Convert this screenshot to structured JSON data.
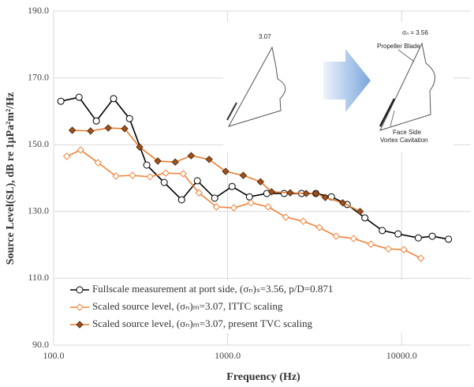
{
  "chart_data": {
    "type": "line",
    "xlabel": "Frequency (Hz)",
    "ylabel": "Source Level(SL), dB re 1μPa²m²/Hz",
    "xscale": "log",
    "grid": true,
    "legend_loc": "lower left",
    "xlim": [
      100,
      25000
    ],
    "xticks": [
      {
        "value": 100,
        "label": "100.0"
      },
      {
        "value": 1000,
        "label": "1000.0"
      },
      {
        "value": 10000,
        "label": "10000.0"
      }
    ],
    "ylim": [
      90,
      190
    ],
    "yticks": [
      {
        "value": 90,
        "label": "90.0"
      },
      {
        "value": 110,
        "label": "110.0"
      },
      {
        "value": 130,
        "label": "130.0"
      },
      {
        "value": 150,
        "label": "150.0"
      },
      {
        "value": 170,
        "label": "170.0"
      },
      {
        "value": 190,
        "label": "190.0"
      }
    ],
    "inset_labels": [
      "3.07",
      "σₙ = 3.56",
      "Propeller Blade",
      "Face Side",
      "Vortex Cavitation"
    ],
    "series": [
      {
        "name": "Fullscale measurement at port side, (σₙ)ₛ=3.56, p/D=0.871",
        "color": "#000000",
        "marker": "circle",
        "marker_fill": "#ffffff",
        "x": [
          110,
          140,
          176,
          221,
          273,
          343,
          432,
          544,
          670,
          843,
          1061,
          1335,
          1680,
          2114,
          2661,
          3214,
          3950,
          4870,
          6150,
          7740,
          9540,
          12470,
          15000,
          18600
        ],
        "values": [
          163.0,
          164.2,
          157.1,
          163.8,
          157.8,
          143.9,
          138.7,
          133.5,
          139.2,
          134.0,
          137.5,
          134.4,
          135.4,
          135.4,
          135.4,
          135.4,
          134.4,
          132.1,
          128.1,
          124.3,
          123.3,
          122.1,
          122.6,
          121.7
        ]
      },
      {
        "name": "Scaled source level, (σₙ)ₘ=3.07, ITTC scaling",
        "color": "#f0843a",
        "marker": "diamond",
        "marker_fill": "#ffffff",
        "x": [
          119,
          143,
          180,
          228,
          284,
          358,
          441,
          555,
          684,
          862,
          1085,
          1360,
          1710,
          2160,
          2720,
          3370,
          4200,
          5300,
          6660,
          8400,
          10300,
          12900
        ],
        "values": [
          146.5,
          148.4,
          144.6,
          140.6,
          140.8,
          140.4,
          141.5,
          141.3,
          135.6,
          131.4,
          131.1,
          132.6,
          131.4,
          128.3,
          127.1,
          125.2,
          122.6,
          121.9,
          120.2,
          118.8,
          118.6,
          116.0
        ]
      },
      {
        "name": "Scaled source level, (σₙ)ₘ=3.07, present TVC scaling",
        "color": "#e87b2c",
        "marker": "diamond",
        "marker_fill": "#a0521e",
        "x": [
          128,
          163,
          206,
          256,
          312,
          397,
          500,
          617,
          783,
          974,
          1230,
          1545,
          1790,
          2290,
          2830,
          3210,
          3640,
          4590,
          5770
        ],
        "values": [
          154.3,
          154.1,
          155.0,
          154.8,
          149.3,
          145.1,
          144.8,
          146.7,
          145.6,
          142.0,
          140.8,
          138.9,
          135.9,
          135.6,
          135.4,
          135.4,
          134.2,
          132.6,
          130.0
        ]
      }
    ]
  }
}
